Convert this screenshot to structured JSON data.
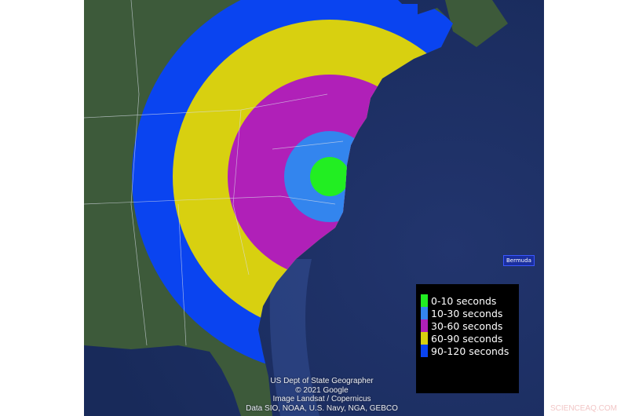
{
  "legend": {
    "items": [
      {
        "label": "0-10 seconds",
        "color": "#22ee22"
      },
      {
        "label": "10-30 seconds",
        "color": "#3385ee"
      },
      {
        "label": "30-60 seconds",
        "color": "#b020b8"
      },
      {
        "label": "60-90 seconds",
        "color": "#d8d010"
      },
      {
        "label": "90-120 seconds",
        "color": "#0a44f0"
      }
    ]
  },
  "map": {
    "label_bermuda": "Bermuda",
    "attribution": [
      "US Dept of State Geographer",
      "© 2021 Google",
      "Image Landsat / Copernicus",
      "Data SIO, NOAA, U.S. Navy, NGA, GEBCO"
    ],
    "ocean_color": "#1e2f66",
    "land_color": "#3d5a3a"
  },
  "watermark": "SCIENCEAQ.COM"
}
